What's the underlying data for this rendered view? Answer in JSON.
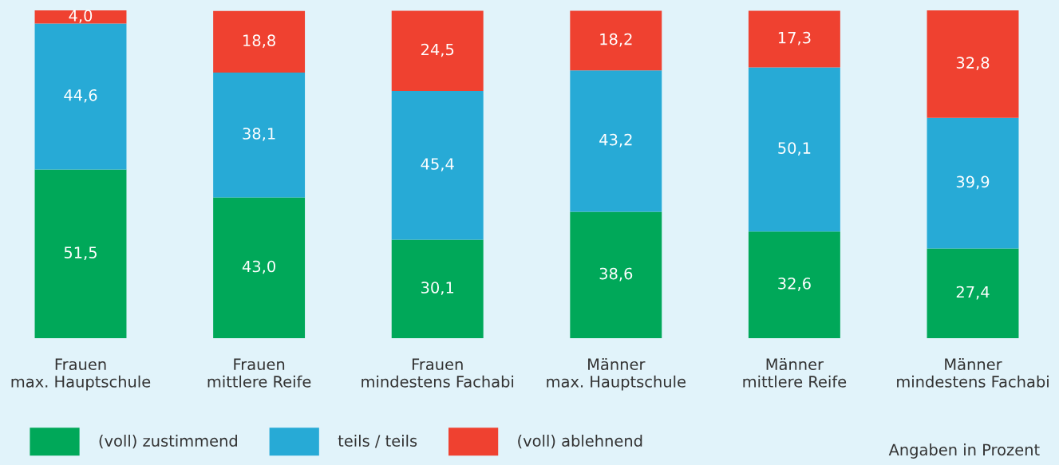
{
  "chart_data": {
    "type": "bar",
    "stacked": true,
    "categories": [
      "Frauen\nmax. Hauptschule",
      "Frauen\nmittlere Reife",
      "Frauen\nmindestens Fachabi",
      "Männer\nmax. Hauptschule",
      "Männer\nmittlere Reife",
      "Männer\nmindestens Fachabi"
    ],
    "series": [
      {
        "name": "(voll) zustimmend",
        "color": "#00a859",
        "values": [
          51.5,
          43.0,
          30.1,
          38.6,
          32.6,
          27.4
        ],
        "value_labels": [
          "51,5",
          "43,0",
          "30,1",
          "38,6",
          "32,6",
          "27,4"
        ]
      },
      {
        "name": "teils / teils",
        "color": "#27aad6",
        "values": [
          44.6,
          38.1,
          45.4,
          43.2,
          50.1,
          39.9
        ],
        "value_labels": [
          "44,6",
          "38,1",
          "45,4",
          "43,2",
          "50,1",
          "39,9"
        ]
      },
      {
        "name": "(voll) ablehnend",
        "color": "#ef4130",
        "values": [
          4.0,
          18.8,
          24.5,
          18.2,
          17.3,
          32.8
        ],
        "value_labels": [
          "4,0",
          "18,8",
          "24,5",
          "18,2",
          "17,3",
          "32,8"
        ]
      }
    ],
    "legend": "bottom left",
    "annotations": [
      "Angaben in Prozent"
    ]
  }
}
